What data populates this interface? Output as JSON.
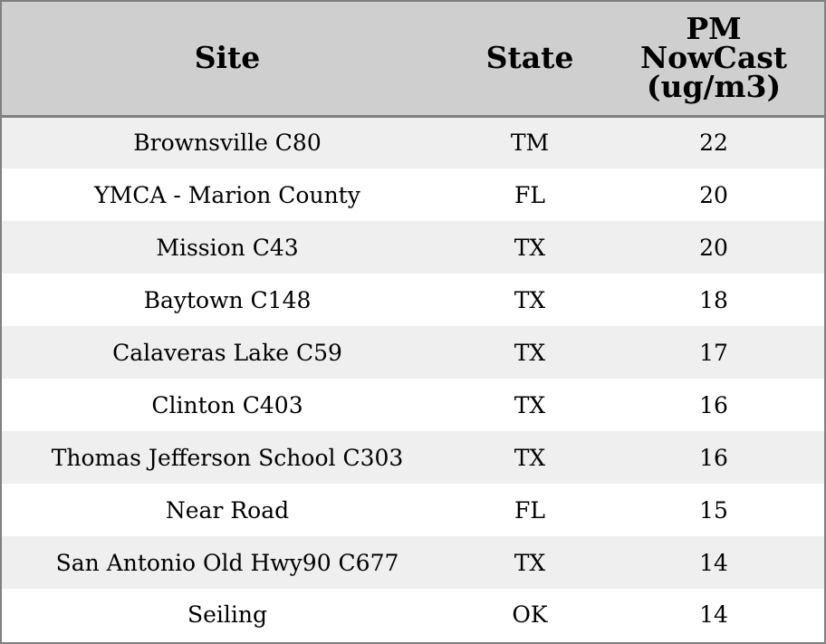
{
  "chart_data": {
    "type": "table",
    "columns": [
      "Site",
      "State",
      "PM NowCast (ug/m3)"
    ],
    "header_lines": {
      "site": "Site",
      "state": "State",
      "pm_line1": "PM",
      "pm_line2": "NowCast",
      "pm_line3": "(ug/m3)"
    },
    "rows": [
      {
        "site": "Brownsville C80",
        "state": "TM",
        "pm": 22
      },
      {
        "site": "YMCA - Marion County",
        "state": "FL",
        "pm": 20
      },
      {
        "site": "Mission C43",
        "state": "TX",
        "pm": 20
      },
      {
        "site": "Baytown C148",
        "state": "TX",
        "pm": 18
      },
      {
        "site": "Calaveras Lake C59",
        "state": "TX",
        "pm": 17
      },
      {
        "site": "Clinton C403",
        "state": "TX",
        "pm": 16
      },
      {
        "site": "Thomas Jefferson School C303",
        "state": "TX",
        "pm": 16
      },
      {
        "site": "Near Road",
        "state": "FL",
        "pm": 15
      },
      {
        "site": "San Antonio Old Hwy90 C677",
        "state": "TX",
        "pm": 14
      },
      {
        "site": "Seiling",
        "state": "OK",
        "pm": 14
      }
    ]
  },
  "colors": {
    "header_bg": "#cfcfcf",
    "row_alt_bg": "#efefef",
    "row_bg": "#ffffff",
    "border": "#808080"
  }
}
